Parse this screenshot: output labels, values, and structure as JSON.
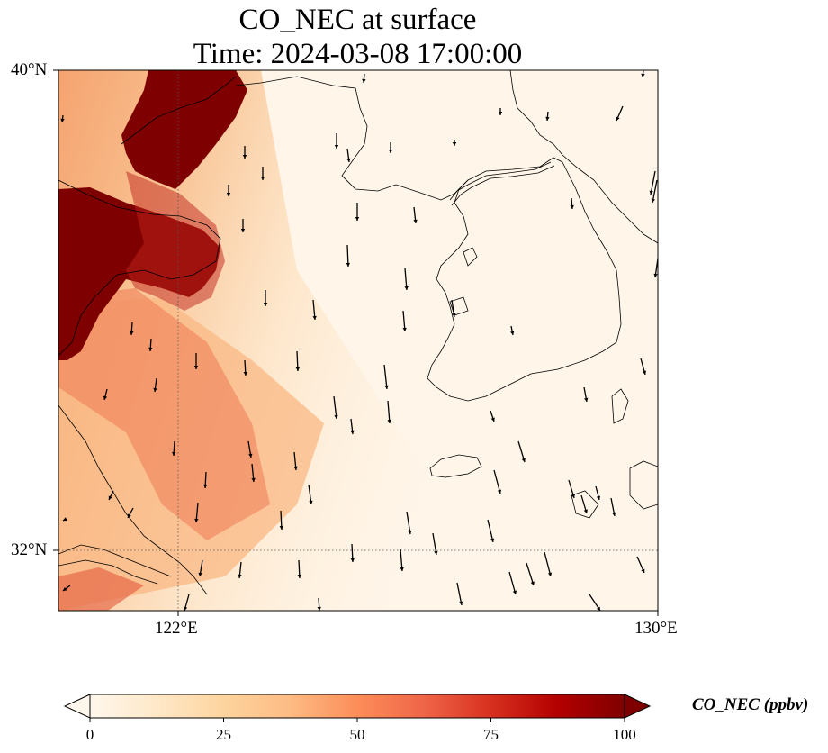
{
  "title": {
    "line1": "CO_NEC at surface",
    "line2": "Time: 2024-03-08 17:00:00"
  },
  "axes": {
    "lat_labels": [
      "40°N",
      "32°N"
    ],
    "lon_labels": [
      "122°E",
      "130°E"
    ],
    "lon_range": [
      120,
      130
    ],
    "lat_range": [
      31,
      40
    ],
    "gridlines": "dotted at 122°E and 32°N"
  },
  "colorbar": {
    "label": "CO_NEC (ppbv)",
    "colormap": "OrRd",
    "ticks": [
      "0",
      "25",
      "50",
      "75",
      "100"
    ],
    "range": [
      0,
      100
    ],
    "extend": "max"
  },
  "map_layers": [
    "filled concentration field",
    "coastlines",
    "wind vectors"
  ],
  "colors": {
    "field_low": "#fff7ec",
    "field_mid": "#fc8d59",
    "field_high": "#7f0000",
    "coastline": "#000000"
  }
}
